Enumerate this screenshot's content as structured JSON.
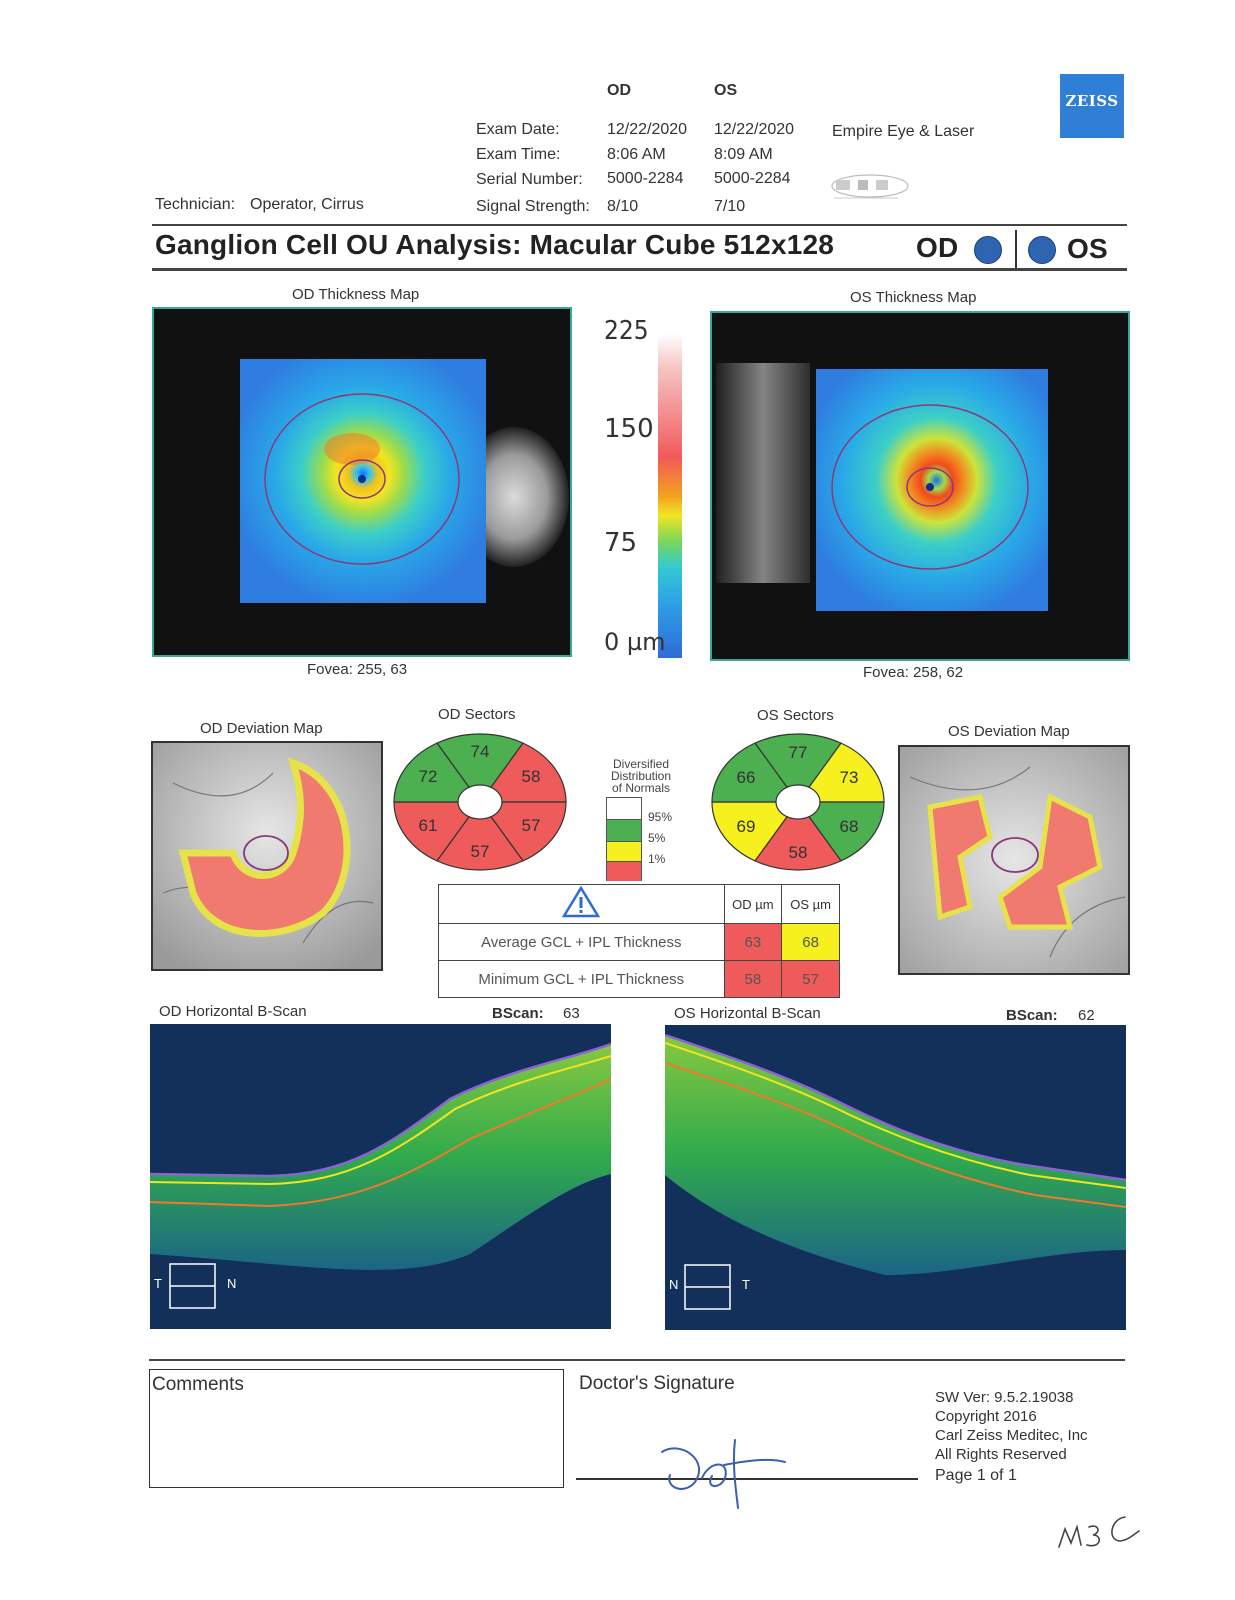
{
  "header": {
    "col_od": "OD",
    "col_os": "OS",
    "rows": [
      {
        "label": "Exam Date:",
        "od": "12/22/2020",
        "os": "12/22/2020"
      },
      {
        "label": "Exam Time:",
        "od": "8:06 AM",
        "os": "8:09 AM"
      },
      {
        "label": "Serial Number:",
        "od": "5000-2284",
        "os": "5000-2284"
      },
      {
        "label": "Signal Strength:",
        "od": "8/10",
        "os": "7/10"
      }
    ],
    "practice": "Empire Eye & Laser",
    "technician_label": "Technician:",
    "technician_value": "Operator, Cirrus",
    "brand": "ZEISS"
  },
  "title": {
    "text": "Ganglion Cell OU Analysis: Macular Cube 512x128",
    "od": "OD",
    "os": "OS"
  },
  "thickness": {
    "od_title": "OD Thickness Map",
    "os_title": "OS Thickness Map",
    "od_fovea": "Fovea: 255, 63",
    "os_fovea": "Fovea: 258, 62",
    "scale": [
      "225",
      "150",
      "75",
      "0 µm"
    ]
  },
  "deviation": {
    "od_title": "OD Deviation Map",
    "os_title": "OS Deviation Map"
  },
  "sectors": {
    "od_title": "OD Sectors",
    "os_title": "OS Sectors",
    "od": {
      "superior": "74",
      "superonasal": "58",
      "inferonasal": "57",
      "inferior": "57",
      "inferotemporal": "61",
      "superotemporal": "72"
    },
    "os": {
      "superior": "77",
      "superonasal": "66",
      "inferonasal": "69",
      "inferior": "58",
      "inferotemporal": "68",
      "superotemporal": "73"
    },
    "colors": {
      "green": "#4caf50",
      "red": "#ef5b5b",
      "yellow": "#f5f01e",
      "white": "#ffffff"
    }
  },
  "legend": {
    "title_lines": [
      "Diversified",
      "Distribution",
      "of Normals"
    ],
    "marks": [
      "95%",
      "5%",
      "1%"
    ]
  },
  "summary": {
    "col_od": "OD µm",
    "col_os": "OS µm",
    "rows": [
      {
        "label": "Average GCL + IPL Thickness",
        "od": "63",
        "os": "68"
      },
      {
        "label": "Minimum GCL + IPL Thickness",
        "od": "58",
        "os": "57"
      }
    ]
  },
  "bscans": {
    "od_title": "OD Horizontal B-Scan",
    "os_title": "OS Horizontal B-Scan",
    "bscan_label": "BScan:",
    "od_bscan": "63",
    "os_bscan": "62",
    "od_left": "T",
    "od_right": "N",
    "os_left": "N",
    "os_right": "T"
  },
  "footer": {
    "comments": "Comments",
    "signature": "Doctor's Signature",
    "sw_lines": [
      "SW Ver: 9.5.2.19038",
      "Copyright 2016",
      "Carl Zeiss Meditec, Inc",
      "All Rights Reserved"
    ],
    "page": "Page 1 of 1",
    "handwritten_initials": "M3C"
  }
}
